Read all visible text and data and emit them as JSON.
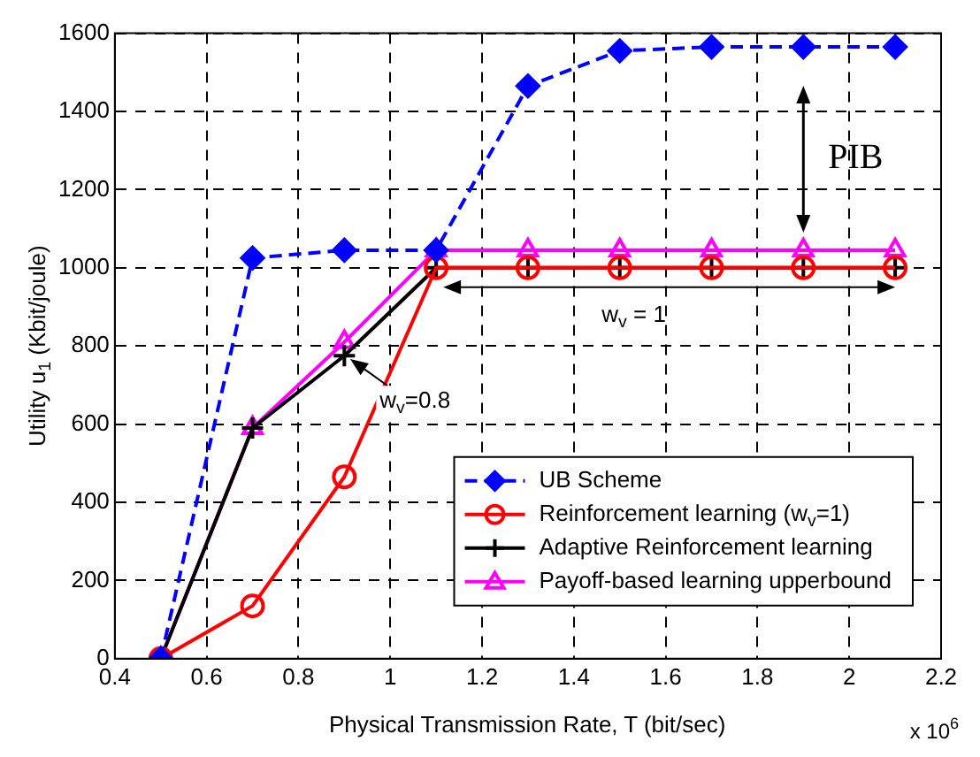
{
  "chart_data": {
    "type": "line",
    "xlabel": "Physical Transmission Rate, T (bit/sec)",
    "ylabel": "Utility u$_{1}$ (Kbit/joule)",
    "x": [
      0.5,
      0.7,
      0.9,
      1.1,
      1.3,
      1.5,
      1.7,
      1.9,
      2.1
    ],
    "series": [
      {
        "name": "UB Scheme",
        "color": "#0000ff",
        "marker": "diamond",
        "line_style": "dashed",
        "values": [
          0,
          1025,
          1045,
          1045,
          1465,
          1555,
          1565,
          1565,
          1565
        ]
      },
      {
        "name": "Reinforcement learning (w$_{v}$=1)",
        "color": "#ff0000",
        "marker": "circle",
        "line_style": "solid",
        "values": [
          0,
          135,
          465,
          1000,
          1000,
          1000,
          1000,
          1000,
          1000
        ]
      },
      {
        "name": "Adaptive Reinforcement learning",
        "color": "#000000",
        "marker": "cross",
        "line_style": "solid",
        "values": [
          0,
          590,
          775,
          1000,
          1000,
          1000,
          1000,
          1000,
          1000
        ]
      },
      {
        "name": "Payoff-based learning upperbound",
        "color": "#ff00ff",
        "marker": "triangle",
        "line_style": "solid",
        "values": [
          0,
          590,
          810,
          1045,
          1045,
          1045,
          1045,
          1045,
          1045
        ]
      }
    ],
    "xlim": [
      0.4,
      2.2
    ],
    "xticks": [
      0.4,
      0.6,
      0.8,
      1,
      1.2,
      1.4,
      1.6,
      1.8,
      2,
      2.2
    ],
    "ylim": [
      0,
      1600
    ],
    "yticks": [
      0,
      200,
      400,
      600,
      800,
      1000,
      1200,
      1400,
      1600
    ],
    "grid": true,
    "legend": "bottom right",
    "annotations": [
      "PIB",
      "w$_{v}$ = 1",
      {
        "text": "w$_{v}$=0.8",
        "x": 0.9,
        "y": 775
      },
      "x 10$^{6}$"
    ]
  }
}
